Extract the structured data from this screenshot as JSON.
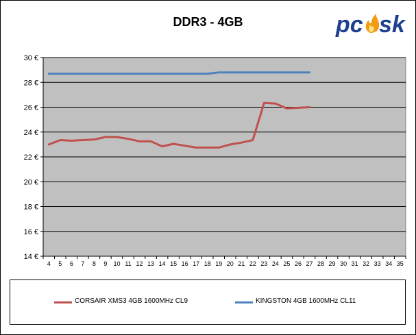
{
  "chart_data": {
    "type": "line",
    "title": "DDR3 - 4GB",
    "xlabel": "",
    "ylabel": "",
    "x": [
      4,
      5,
      6,
      7,
      8,
      9,
      10,
      11,
      12,
      13,
      14,
      15,
      16,
      17,
      18,
      19,
      20,
      21,
      22,
      23,
      24,
      25,
      26,
      27,
      28,
      29,
      30,
      31,
      32,
      33,
      34,
      35
    ],
    "ylim": [
      14,
      30
    ],
    "yticks": [
      14,
      16,
      18,
      20,
      22,
      24,
      26,
      28,
      30
    ],
    "ytick_labels": [
      "14 €",
      "16 €",
      "18 €",
      "20 €",
      "22 €",
      "24 €",
      "26 €",
      "28 €",
      "30 €"
    ],
    "grid": "horizontal",
    "legend_position": "bottom",
    "series": [
      {
        "name": "CORSAIR XMS3 4GB 1600MHz CL9",
        "color": "#c0504d",
        "x": [
          4,
          5,
          6,
          7,
          8,
          9,
          10,
          11,
          12,
          13,
          14,
          15,
          16,
          17,
          18,
          19,
          20,
          21,
          22,
          23,
          24,
          25,
          26,
          27
        ],
        "values": [
          23.0,
          23.35,
          23.3,
          23.35,
          23.4,
          23.6,
          23.6,
          23.45,
          23.25,
          23.25,
          22.85,
          23.05,
          22.9,
          22.75,
          22.75,
          22.75,
          23.0,
          23.15,
          23.35,
          26.35,
          26.3,
          25.9,
          25.95,
          26.0
        ]
      },
      {
        "name": "KINGSTON 4GB 1600MHz CL11",
        "color": "#4f81bd",
        "x": [
          4,
          5,
          6,
          7,
          8,
          9,
          10,
          11,
          12,
          13,
          14,
          15,
          16,
          17,
          18,
          19,
          20,
          21,
          22,
          23,
          24,
          25,
          26,
          27
        ],
        "values": [
          28.7,
          28.7,
          28.7,
          28.7,
          28.7,
          28.7,
          28.7,
          28.7,
          28.7,
          28.7,
          28.7,
          28.7,
          28.7,
          28.7,
          28.7,
          28.8,
          28.8,
          28.8,
          28.8,
          28.8,
          28.8,
          28.8,
          28.8,
          28.8
        ]
      }
    ]
  },
  "logo": {
    "text": "pcsk",
    "colors": {
      "main": "#1f3f8f",
      "flame": "#f39c12"
    }
  },
  "colors": {
    "plot_background": "#c0c0c0",
    "gridline": "#000000"
  }
}
